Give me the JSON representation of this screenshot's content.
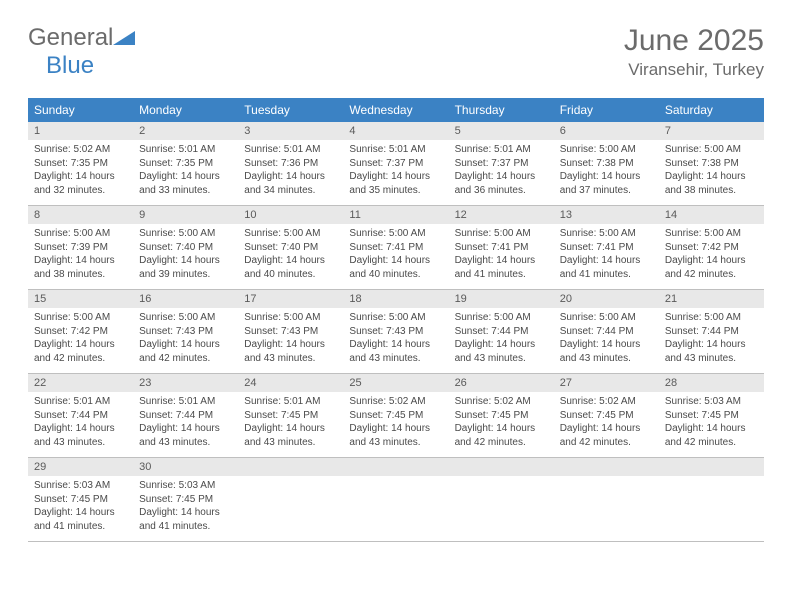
{
  "brand": {
    "general": "General",
    "blue": "Blue"
  },
  "header": {
    "title": "June 2025",
    "location": "Viransehir, Turkey"
  },
  "colors": {
    "accent": "#3b82c4",
    "header_bg": "#3b82c4",
    "header_text": "#ffffff",
    "daynum_bg": "#e8e8e8",
    "text": "#4a4a4a",
    "subtext": "#6b6b6b",
    "row_divider": "#bfbfbf",
    "background": "#ffffff"
  },
  "typography": {
    "title_fontsize": 30,
    "location_fontsize": 17,
    "weekday_fontsize": 12,
    "daynum_fontsize": 11,
    "body_fontsize": 10
  },
  "calendar": {
    "columns": [
      "Sunday",
      "Monday",
      "Tuesday",
      "Wednesday",
      "Thursday",
      "Friday",
      "Saturday"
    ],
    "weeks": [
      [
        {
          "day": "1",
          "sunrise": "Sunrise: 5:02 AM",
          "sunset": "Sunset: 7:35 PM",
          "daylight": "Daylight: 14 hours and 32 minutes."
        },
        {
          "day": "2",
          "sunrise": "Sunrise: 5:01 AM",
          "sunset": "Sunset: 7:35 PM",
          "daylight": "Daylight: 14 hours and 33 minutes."
        },
        {
          "day": "3",
          "sunrise": "Sunrise: 5:01 AM",
          "sunset": "Sunset: 7:36 PM",
          "daylight": "Daylight: 14 hours and 34 minutes."
        },
        {
          "day": "4",
          "sunrise": "Sunrise: 5:01 AM",
          "sunset": "Sunset: 7:37 PM",
          "daylight": "Daylight: 14 hours and 35 minutes."
        },
        {
          "day": "5",
          "sunrise": "Sunrise: 5:01 AM",
          "sunset": "Sunset: 7:37 PM",
          "daylight": "Daylight: 14 hours and 36 minutes."
        },
        {
          "day": "6",
          "sunrise": "Sunrise: 5:00 AM",
          "sunset": "Sunset: 7:38 PM",
          "daylight": "Daylight: 14 hours and 37 minutes."
        },
        {
          "day": "7",
          "sunrise": "Sunrise: 5:00 AM",
          "sunset": "Sunset: 7:38 PM",
          "daylight": "Daylight: 14 hours and 38 minutes."
        }
      ],
      [
        {
          "day": "8",
          "sunrise": "Sunrise: 5:00 AM",
          "sunset": "Sunset: 7:39 PM",
          "daylight": "Daylight: 14 hours and 38 minutes."
        },
        {
          "day": "9",
          "sunrise": "Sunrise: 5:00 AM",
          "sunset": "Sunset: 7:40 PM",
          "daylight": "Daylight: 14 hours and 39 minutes."
        },
        {
          "day": "10",
          "sunrise": "Sunrise: 5:00 AM",
          "sunset": "Sunset: 7:40 PM",
          "daylight": "Daylight: 14 hours and 40 minutes."
        },
        {
          "day": "11",
          "sunrise": "Sunrise: 5:00 AM",
          "sunset": "Sunset: 7:41 PM",
          "daylight": "Daylight: 14 hours and 40 minutes."
        },
        {
          "day": "12",
          "sunrise": "Sunrise: 5:00 AM",
          "sunset": "Sunset: 7:41 PM",
          "daylight": "Daylight: 14 hours and 41 minutes."
        },
        {
          "day": "13",
          "sunrise": "Sunrise: 5:00 AM",
          "sunset": "Sunset: 7:41 PM",
          "daylight": "Daylight: 14 hours and 41 minutes."
        },
        {
          "day": "14",
          "sunrise": "Sunrise: 5:00 AM",
          "sunset": "Sunset: 7:42 PM",
          "daylight": "Daylight: 14 hours and 42 minutes."
        }
      ],
      [
        {
          "day": "15",
          "sunrise": "Sunrise: 5:00 AM",
          "sunset": "Sunset: 7:42 PM",
          "daylight": "Daylight: 14 hours and 42 minutes."
        },
        {
          "day": "16",
          "sunrise": "Sunrise: 5:00 AM",
          "sunset": "Sunset: 7:43 PM",
          "daylight": "Daylight: 14 hours and 42 minutes."
        },
        {
          "day": "17",
          "sunrise": "Sunrise: 5:00 AM",
          "sunset": "Sunset: 7:43 PM",
          "daylight": "Daylight: 14 hours and 43 minutes."
        },
        {
          "day": "18",
          "sunrise": "Sunrise: 5:00 AM",
          "sunset": "Sunset: 7:43 PM",
          "daylight": "Daylight: 14 hours and 43 minutes."
        },
        {
          "day": "19",
          "sunrise": "Sunrise: 5:00 AM",
          "sunset": "Sunset: 7:44 PM",
          "daylight": "Daylight: 14 hours and 43 minutes."
        },
        {
          "day": "20",
          "sunrise": "Sunrise: 5:00 AM",
          "sunset": "Sunset: 7:44 PM",
          "daylight": "Daylight: 14 hours and 43 minutes."
        },
        {
          "day": "21",
          "sunrise": "Sunrise: 5:00 AM",
          "sunset": "Sunset: 7:44 PM",
          "daylight": "Daylight: 14 hours and 43 minutes."
        }
      ],
      [
        {
          "day": "22",
          "sunrise": "Sunrise: 5:01 AM",
          "sunset": "Sunset: 7:44 PM",
          "daylight": "Daylight: 14 hours and 43 minutes."
        },
        {
          "day": "23",
          "sunrise": "Sunrise: 5:01 AM",
          "sunset": "Sunset: 7:44 PM",
          "daylight": "Daylight: 14 hours and 43 minutes."
        },
        {
          "day": "24",
          "sunrise": "Sunrise: 5:01 AM",
          "sunset": "Sunset: 7:45 PM",
          "daylight": "Daylight: 14 hours and 43 minutes."
        },
        {
          "day": "25",
          "sunrise": "Sunrise: 5:02 AM",
          "sunset": "Sunset: 7:45 PM",
          "daylight": "Daylight: 14 hours and 43 minutes."
        },
        {
          "day": "26",
          "sunrise": "Sunrise: 5:02 AM",
          "sunset": "Sunset: 7:45 PM",
          "daylight": "Daylight: 14 hours and 42 minutes."
        },
        {
          "day": "27",
          "sunrise": "Sunrise: 5:02 AM",
          "sunset": "Sunset: 7:45 PM",
          "daylight": "Daylight: 14 hours and 42 minutes."
        },
        {
          "day": "28",
          "sunrise": "Sunrise: 5:03 AM",
          "sunset": "Sunset: 7:45 PM",
          "daylight": "Daylight: 14 hours and 42 minutes."
        }
      ],
      [
        {
          "day": "29",
          "sunrise": "Sunrise: 5:03 AM",
          "sunset": "Sunset: 7:45 PM",
          "daylight": "Daylight: 14 hours and 41 minutes."
        },
        {
          "day": "30",
          "sunrise": "Sunrise: 5:03 AM",
          "sunset": "Sunset: 7:45 PM",
          "daylight": "Daylight: 14 hours and 41 minutes."
        },
        null,
        null,
        null,
        null,
        null
      ]
    ]
  }
}
